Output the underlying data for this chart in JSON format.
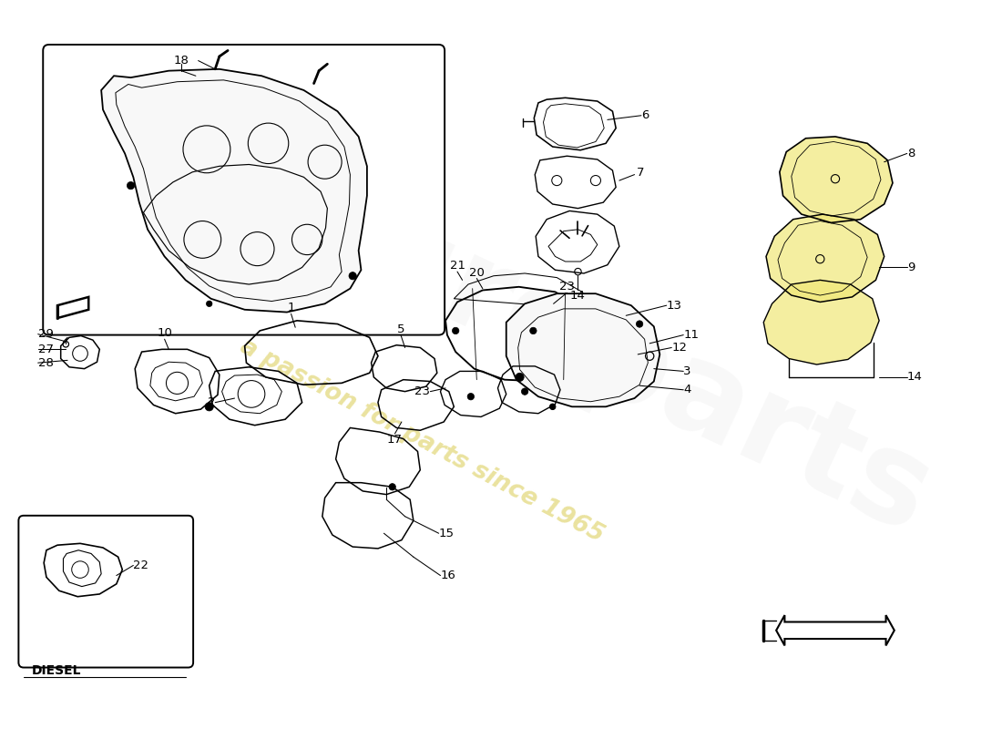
{
  "bg": "#ffffff",
  "lc": "#1a1a1a",
  "wm_text": "a passion for parts since 1965",
  "wm_color": "#c8b400",
  "wm_alpha": 0.38,
  "logo_color": "#cccccc",
  "logo_alpha": 0.13,
  "yellow": "#f0e878",
  "yellow_alpha": 0.7,
  "fs": 9.5,
  "lw": 1.1
}
